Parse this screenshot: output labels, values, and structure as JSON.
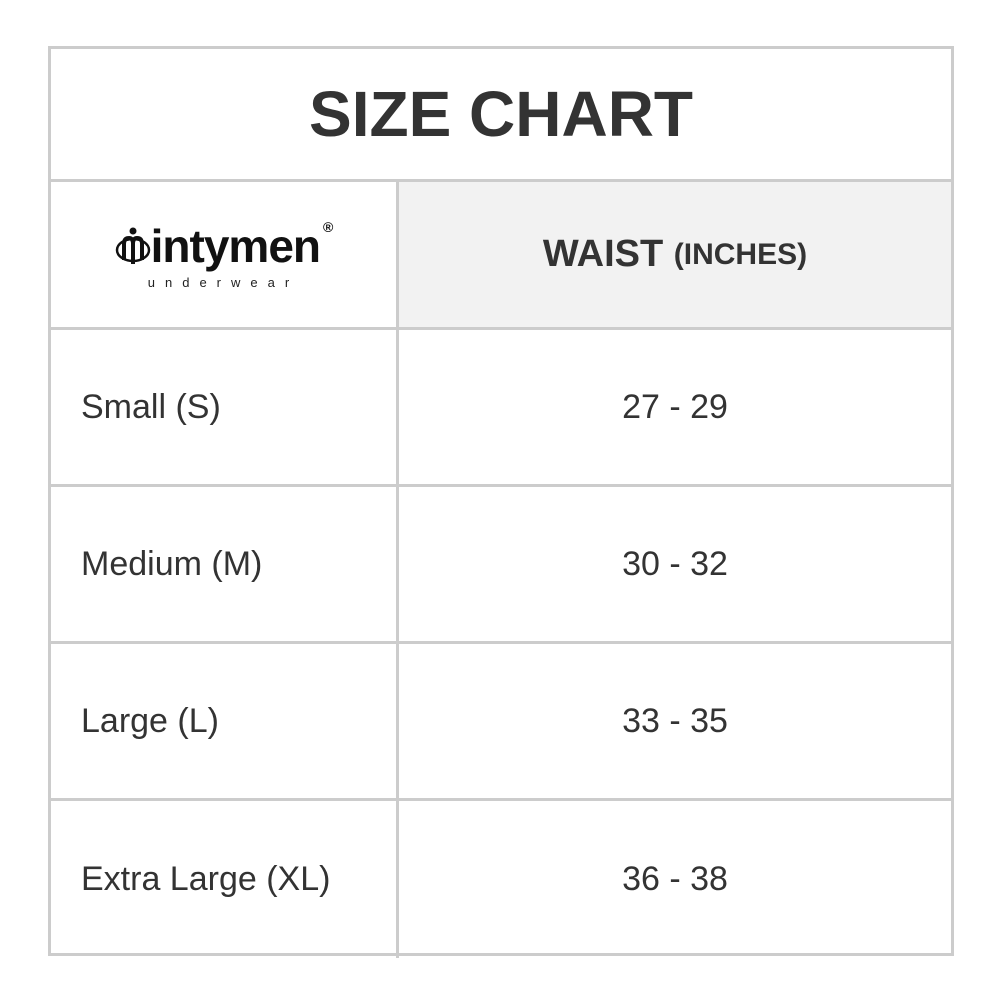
{
  "title": "SIZE CHART",
  "logo": {
    "brand": "intymen",
    "sub": "underwear",
    "reg": "®"
  },
  "header": {
    "waist": "WAIST",
    "unit": "(INCHES)"
  },
  "rows": [
    {
      "size": "Small (S)",
      "waist": "27 - 29"
    },
    {
      "size": "Medium (M)",
      "waist": "30 - 32"
    },
    {
      "size": "Large (L)",
      "waist": "33 - 35"
    },
    {
      "size": "Extra Large (XL)",
      "waist": "36 - 38"
    }
  ]
}
